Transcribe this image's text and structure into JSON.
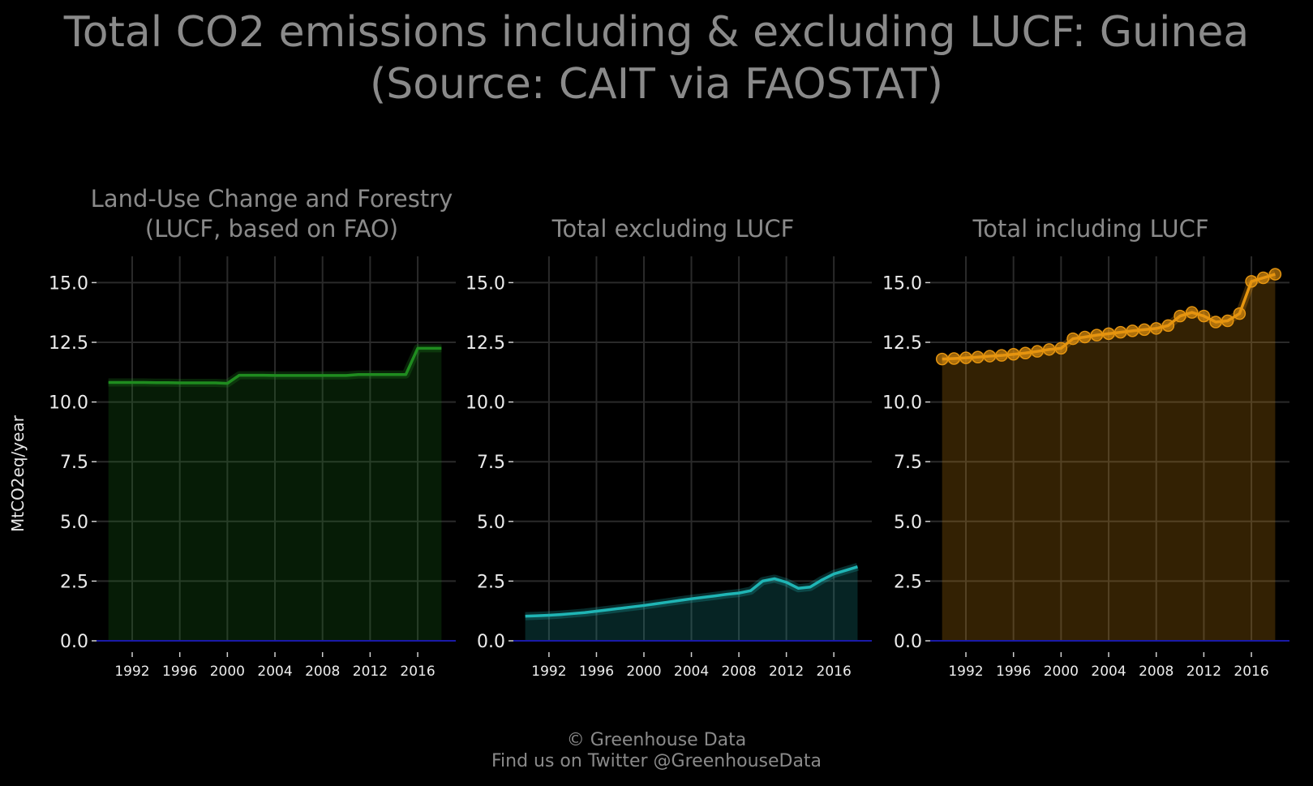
{
  "title": "Total CO2 emissions including & excluding LUCF: Guinea",
  "subtitle": "(Source: CAIT via FAOSTAT)",
  "footer": {
    "line1": "© Greenhouse Data",
    "line2": "Find us on Twitter @GreenhouseData"
  },
  "colors": {
    "background": "#000000",
    "grid": "#2a2a2a",
    "zero_line": "#1a1aa8",
    "lucf": "#1f8c1f",
    "excl": "#1fb5b5",
    "incl": "#e6950f"
  },
  "chart_data": [
    {
      "type": "area",
      "title": "Land-Use Change and Forestry\n(LUCF, based on FAO)",
      "title_lines": [
        "Land-Use Change and Forestry",
        "(LUCF, based on FAO)"
      ],
      "ylabel": "MtCO2eq/year",
      "xlabel": "",
      "x": [
        1990,
        1991,
        1992,
        1993,
        1994,
        1995,
        1996,
        1997,
        1998,
        1999,
        2000,
        2001,
        2002,
        2003,
        2004,
        2005,
        2006,
        2007,
        2008,
        2009,
        2010,
        2011,
        2012,
        2013,
        2014,
        2015,
        2016,
        2017,
        2018
      ],
      "values": [
        10.82,
        10.82,
        10.82,
        10.82,
        10.81,
        10.81,
        10.8,
        10.8,
        10.8,
        10.8,
        10.78,
        11.12,
        11.12,
        11.12,
        11.11,
        11.11,
        11.11,
        11.11,
        11.11,
        11.11,
        11.11,
        11.15,
        11.15,
        11.15,
        11.15,
        11.15,
        12.25,
        12.25,
        12.25
      ],
      "ylim": [
        0,
        16.1
      ],
      "yticks": [
        0.0,
        2.5,
        5.0,
        7.5,
        10.0,
        12.5,
        15.0
      ],
      "xticks": [
        1992,
        1996,
        2000,
        2004,
        2008,
        2012,
        2016
      ],
      "markers": false,
      "grid": true
    },
    {
      "type": "area",
      "title": "Total excluding LUCF",
      "title_lines": [
        "Total excluding LUCF"
      ],
      "x": [
        1990,
        1991,
        1992,
        1993,
        1994,
        1995,
        1996,
        1997,
        1998,
        1999,
        2000,
        2001,
        2002,
        2003,
        2004,
        2005,
        2006,
        2007,
        2008,
        2009,
        2010,
        2011,
        2012,
        2013,
        2014,
        2015,
        2016,
        2017,
        2018
      ],
      "values": [
        1.03,
        1.05,
        1.07,
        1.1,
        1.14,
        1.18,
        1.24,
        1.3,
        1.36,
        1.42,
        1.48,
        1.55,
        1.62,
        1.69,
        1.76,
        1.82,
        1.88,
        1.95,
        2.0,
        2.1,
        2.5,
        2.6,
        2.45,
        2.2,
        2.25,
        2.55,
        2.8,
        2.95,
        3.1
      ],
      "ylim": [
        0,
        16.1
      ],
      "yticks": [
        0.0,
        2.5,
        5.0,
        7.5,
        10.0,
        12.5,
        15.0
      ],
      "xticks": [
        1992,
        1996,
        2000,
        2004,
        2008,
        2012,
        2016
      ],
      "markers": false,
      "grid": true
    },
    {
      "type": "area",
      "title": "Total including LUCF",
      "title_lines": [
        "Total including LUCF"
      ],
      "x": [
        1990,
        1991,
        1992,
        1993,
        1994,
        1995,
        1996,
        1997,
        1998,
        1999,
        2000,
        2001,
        2002,
        2003,
        2004,
        2005,
        2006,
        2007,
        2008,
        2009,
        2010,
        2011,
        2012,
        2013,
        2014,
        2015,
        2016,
        2017,
        2018
      ],
      "values": [
        11.8,
        11.82,
        11.85,
        11.88,
        11.92,
        11.95,
        12.0,
        12.05,
        12.12,
        12.2,
        12.25,
        12.65,
        12.72,
        12.8,
        12.86,
        12.92,
        12.98,
        13.03,
        13.08,
        13.2,
        13.6,
        13.75,
        13.6,
        13.35,
        13.4,
        13.7,
        15.05,
        15.2,
        15.35
      ],
      "ylim": [
        0,
        16.1
      ],
      "yticks": [
        0.0,
        2.5,
        5.0,
        7.5,
        10.0,
        12.5,
        15.0
      ],
      "xticks": [
        1992,
        1996,
        2000,
        2004,
        2008,
        2012,
        2016
      ],
      "markers": true,
      "grid": true
    }
  ]
}
